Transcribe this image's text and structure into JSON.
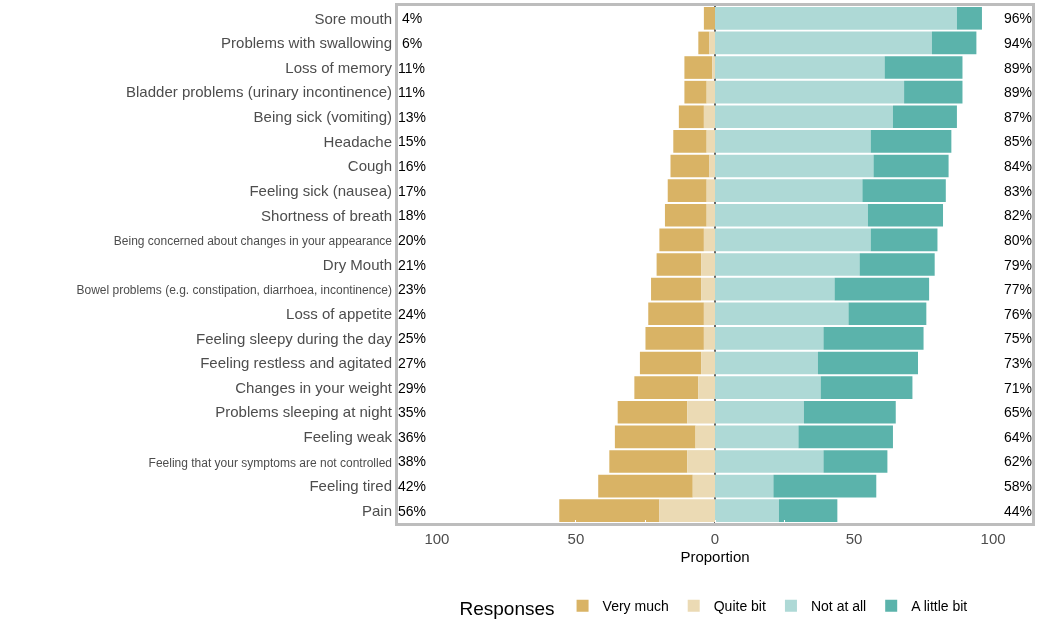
{
  "chart_data": {
    "type": "bar",
    "orientation": "horizontal",
    "stacked": true,
    "xlabel": "Proportion",
    "legend_title": "Responses",
    "legend": "bottom",
    "grid": false,
    "categories": [
      "Sore mouth",
      "Problems with swallowing",
      "Loss of memory",
      "Bladder problems (urinary incontinence)",
      "Being sick (vomiting)",
      "Headache",
      "Cough",
      "Feeling sick (nausea)",
      "Shortness of breath",
      "Being concerned about changes in your appearance",
      "Dry Mouth",
      "Bowel problems (e.g. constipation, diarrhoea, incontinence)",
      "Loss of appetite",
      "Feeling sleepy during the day",
      "Feeling restless and agitated",
      "Changes in your weight",
      "Problems sleeping at night",
      "Feeling weak",
      "Feeling that your symptoms are not controlled",
      "Feeling tired",
      "Pain"
    ],
    "series": [
      {
        "name": "Very much",
        "color": "#d9b365",
        "values": [
          -4,
          -4,
          -10,
          -8,
          -9,
          -12,
          -14,
          -14,
          -15,
          -16,
          -16,
          -18,
          -20,
          -21,
          -22,
          -23,
          -25,
          -29,
          -28,
          -34,
          -36
        ]
      },
      {
        "name": "Quite bit",
        "color": "#ebdab4",
        "values": [
          0,
          -2,
          -1,
          -3,
          -4,
          -3,
          -2,
          -3,
          -3,
          -4,
          -5,
          -5,
          -4,
          -4,
          -5,
          -6,
          -10,
          -7,
          -10,
          -8,
          -20
        ]
      },
      {
        "name": "Not at all",
        "color": "#aed9d6",
        "values": [
          87,
          78,
          61,
          68,
          64,
          56,
          57,
          53,
          55,
          56,
          52,
          43,
          48,
          39,
          37,
          38,
          32,
          30,
          39,
          21,
          23
        ]
      },
      {
        "name": "A little bit",
        "color": "#5bb3ab",
        "values": [
          9,
          16,
          28,
          21,
          23,
          29,
          27,
          30,
          27,
          24,
          27,
          34,
          28,
          36,
          36,
          33,
          33,
          34,
          23,
          37,
          21
        ]
      }
    ],
    "xlim": [
      -114,
      114
    ],
    "xticks": [
      {
        "value": -100,
        "label": "100"
      },
      {
        "value": -75,
        "label": null
      },
      {
        "value": -50,
        "label": "50"
      },
      {
        "value": -25,
        "label": null
      },
      0,
      {
        "value": 25,
        "label": null
      },
      50,
      {
        "value": 75,
        "label": null
      },
      100
    ],
    "ref_lines": [
      {
        "axis": "x",
        "value": 0,
        "color": "#000000"
      }
    ],
    "totals": [
      [
        "4%",
        "96%"
      ],
      [
        "6%",
        "94%"
      ],
      [
        "11%",
        "89%"
      ],
      [
        "11%",
        "89%"
      ],
      [
        "13%",
        "87%"
      ],
      [
        "15%",
        "85%"
      ],
      [
        "16%",
        "84%"
      ],
      [
        "17%",
        "83%"
      ],
      [
        "18%",
        "82%"
      ],
      [
        "20%",
        "80%"
      ],
      [
        "21%",
        "79%"
      ],
      [
        "23%",
        "77%"
      ],
      [
        "24%",
        "76%"
      ],
      [
        "25%",
        "75%"
      ],
      [
        "27%",
        "73%"
      ],
      [
        "29%",
        "71%"
      ],
      [
        "35%",
        "65%"
      ],
      [
        "36%",
        "64%"
      ],
      [
        "38%",
        "62%"
      ],
      [
        "42%",
        "58%"
      ],
      [
        "56%",
        "44%"
      ]
    ]
  }
}
